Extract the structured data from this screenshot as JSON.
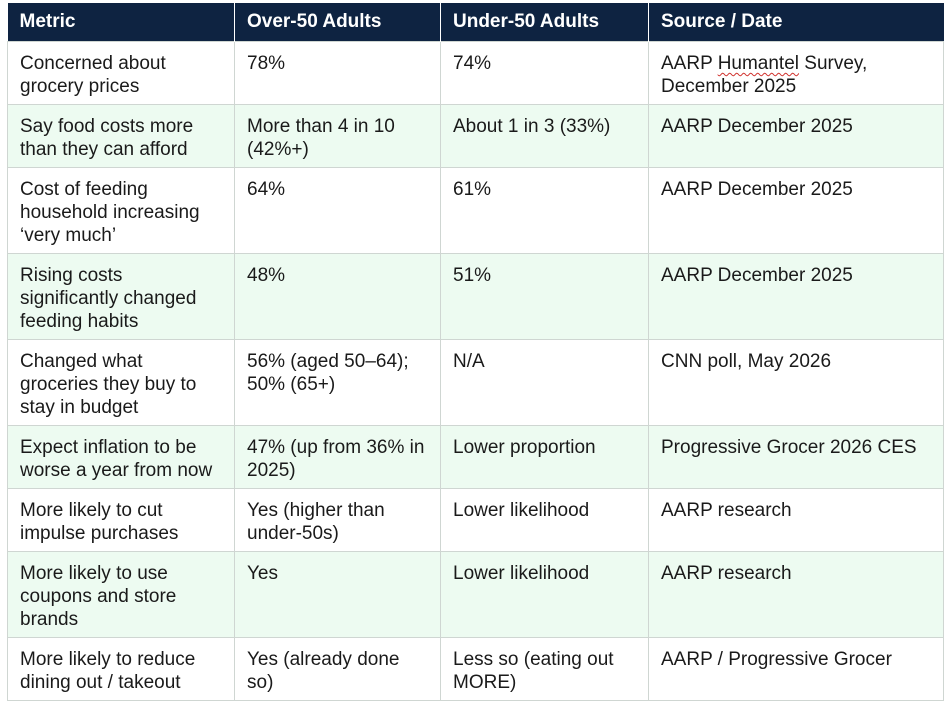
{
  "table": {
    "headers": [
      "Metric",
      "Over-50 Adults",
      "Under-50 Adults",
      "Source / Date"
    ],
    "rows": [
      [
        "Concerned about grocery prices",
        "78%",
        "74%",
        "AARP Humantel Survey, December 2025"
      ],
      [
        "Say food costs more than they can afford",
        "More than 4 in 10 (42%+)",
        "About 1 in 3 (33%)",
        "AARP December 2025"
      ],
      [
        "Cost of feeding household increasing ‘very much’",
        "64%",
        "61%",
        "AARP December 2025"
      ],
      [
        "Rising costs significantly changed feeding habits",
        "48%",
        "51%",
        "AARP December 2025"
      ],
      [
        "Changed what groceries they buy to stay in budget",
        "56% (aged 50–64); 50% (65+)",
        "N/A",
        "CNN poll, May 2026"
      ],
      [
        "Expect inflation to be worse a year from now",
        "47% (up from 36% in 2025)",
        "Lower proportion",
        "Progressive Grocer 2026 CES"
      ],
      [
        "More likely to cut impulse purchases",
        "Yes (higher than under-50s)",
        "Lower likelihood",
        "AARP research"
      ],
      [
        "More likely to use coupons and store brands",
        "Yes",
        "Lower likelihood",
        "AARP research"
      ],
      [
        "More likely to reduce dining out / takeout",
        "Yes (already done so)",
        "Less so (eating out MORE)",
        "AARP / Progressive Grocer"
      ]
    ],
    "source_row0": {
      "before": "AARP ",
      "flagged": "Humantel",
      "after": " Survey, December 2025"
    }
  }
}
